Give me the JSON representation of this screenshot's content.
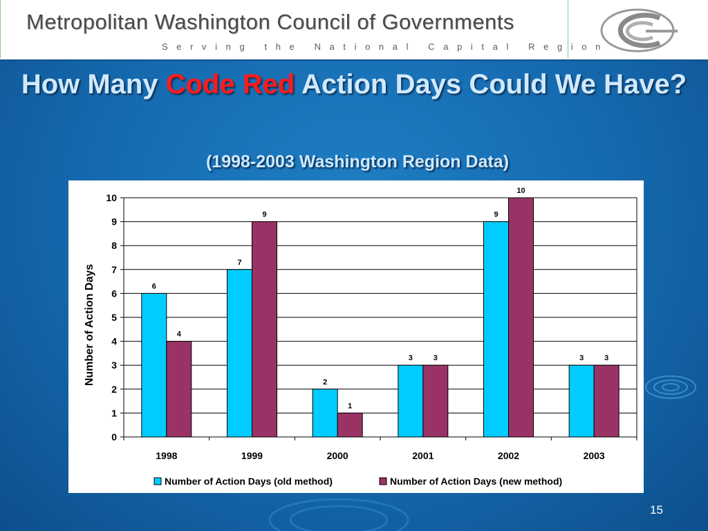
{
  "header": {
    "org_name": "Metropolitan Washington Council of Governments",
    "tagline": "Serving the National Capital Region",
    "logo_icon": "mwcog-logo-icon"
  },
  "slide": {
    "title_before": "How Many ",
    "title_highlight": "Code Red",
    "title_after": " Action Days Could We Have?",
    "subtitle": "(1998-2003 Washington Region Data)",
    "page_number": "15"
  },
  "colors": {
    "old_method": "#00ccff",
    "new_method": "#993366",
    "highlight": "#ff1a1a",
    "title_text": "#cfe9ff"
  },
  "chart_data": {
    "type": "bar",
    "categories": [
      "1998",
      "1999",
      "2000",
      "2001",
      "2002",
      "2003"
    ],
    "series": [
      {
        "name": "Number of Action Days (old method)",
        "values": [
          6,
          7,
          2,
          3,
          9,
          3
        ]
      },
      {
        "name": "Number of Action Days (new method)",
        "values": [
          4,
          9,
          1,
          3,
          10,
          3
        ]
      }
    ],
    "ylabel": "Number of Action Days",
    "xlabel": "",
    "ylim": [
      0,
      10
    ],
    "yticks": [
      "0",
      "1",
      "2",
      "3",
      "4",
      "5",
      "6",
      "7",
      "8",
      "9",
      "10"
    ],
    "grid": true,
    "data_labels": true,
    "legend_position": "bottom"
  }
}
